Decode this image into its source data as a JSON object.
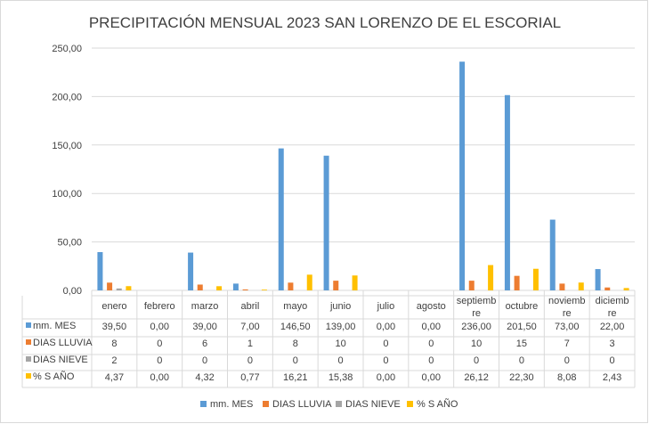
{
  "chart_data": {
    "type": "bar",
    "title": "PRECIPITACIÓN MENSUAL 2023 SAN LORENZO DE EL ESCORIAL",
    "xlabel": "",
    "ylabel": "",
    "ylim": [
      0,
      250
    ],
    "yticks": [
      "0,00",
      "50,00",
      "100,00",
      "150,00",
      "200,00",
      "250,00"
    ],
    "ytick_values": [
      0,
      50,
      100,
      150,
      200,
      250
    ],
    "grid": true,
    "legend_position": "bottom",
    "data_table": true,
    "categories": [
      [
        "enero"
      ],
      [
        "febrero"
      ],
      [
        "marzo"
      ],
      [
        "abril"
      ],
      [
        "mayo"
      ],
      [
        "junio"
      ],
      [
        "julio"
      ],
      [
        "agosto"
      ],
      [
        "septiemb",
        "re"
      ],
      [
        "octubre"
      ],
      [
        "noviemb",
        "re"
      ],
      [
        "diciemb",
        "re"
      ]
    ],
    "series": [
      {
        "name": "mm. MES",
        "color": "#5b9bd5",
        "values": [
          39.5,
          0,
          39.0,
          7.0,
          146.5,
          139.0,
          0,
          0,
          236.0,
          201.5,
          73.0,
          22.0
        ],
        "labels": [
          "39,50",
          "0,00",
          "39,00",
          "7,00",
          "146,50",
          "139,00",
          "0,00",
          "0,00",
          "236,00",
          "201,50",
          "73,00",
          "22,00"
        ]
      },
      {
        "name": "DIAS LLUVIA",
        "color": "#ed7d31",
        "values": [
          8,
          0,
          6,
          1,
          8,
          10,
          0,
          0,
          10,
          15,
          7,
          3
        ],
        "labels": [
          "8",
          "0",
          "6",
          "1",
          "8",
          "10",
          "0",
          "0",
          "10",
          "15",
          "7",
          "3"
        ]
      },
      {
        "name": "DIAS NIEVE",
        "color": "#a5a5a5",
        "values": [
          2,
          0,
          0,
          0,
          0,
          0,
          0,
          0,
          0,
          0,
          0,
          0
        ],
        "labels": [
          "2",
          "0",
          "0",
          "0",
          "0",
          "0",
          "0",
          "0",
          "0",
          "0",
          "0",
          "0"
        ]
      },
      {
        "name": "% S AÑO",
        "color": "#ffc000",
        "values": [
          4.37,
          0,
          4.32,
          0.77,
          16.21,
          15.38,
          0,
          0,
          26.12,
          22.3,
          8.08,
          2.43
        ],
        "labels": [
          "4,37",
          "0,00",
          "4,32",
          "0,77",
          "16,21",
          "15,38",
          "0,00",
          "0,00",
          "26,12",
          "22,30",
          "8,08",
          "2,43"
        ]
      }
    ]
  }
}
